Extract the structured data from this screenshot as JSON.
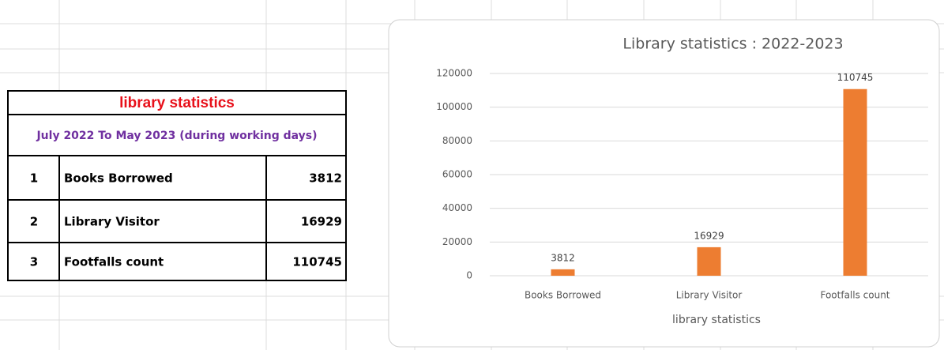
{
  "table": {
    "title": "library statistics",
    "subtitle": "July 2022 To May  2023 (during working days)",
    "rows": [
      [
        "1",
        "Books Borrowed",
        "3812"
      ],
      [
        "2",
        "Library Visitor",
        "16929"
      ],
      [
        "3",
        "Footfalls count",
        "110745"
      ]
    ]
  },
  "chart_data": {
    "type": "bar",
    "title": "Library statistics : 2022-2023",
    "x_label": "library statistics",
    "categories": [
      "Books Borrowed",
      "Library Visitor",
      "Footfalls count"
    ],
    "values": [
      3812,
      16929,
      110745
    ],
    "color": "#ed7d31",
    "ylim": [
      0,
      120000
    ],
    "yticks": [
      0,
      20000,
      40000,
      60000,
      80000,
      100000,
      120000
    ],
    "grid": true
  }
}
